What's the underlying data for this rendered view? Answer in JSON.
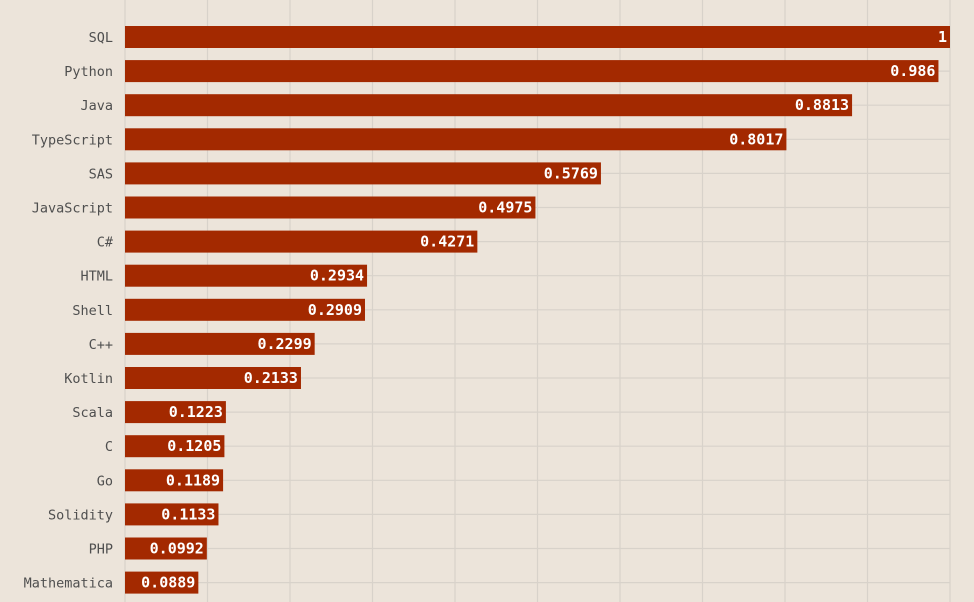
{
  "chart_data": {
    "type": "bar",
    "orientation": "horizontal",
    "categories": [
      "SQL",
      "Python",
      "Java",
      "TypeScript",
      "SAS",
      "JavaScript",
      "C#",
      "HTML",
      "Shell",
      "C++",
      "Kotlin",
      "Scala",
      "C",
      "Go",
      "Solidity",
      "PHP",
      "Mathematica"
    ],
    "values": [
      1,
      0.986,
      0.8813,
      0.8017,
      0.5769,
      0.4975,
      0.4271,
      0.2934,
      0.2909,
      0.2299,
      0.2133,
      0.1223,
      0.1205,
      0.1189,
      0.1133,
      0.0992,
      0.0889
    ],
    "value_labels": [
      "1",
      "0.986",
      "0.8813",
      "0.8017",
      "0.5769",
      "0.4975",
      "0.4271",
      "0.2934",
      "0.2909",
      "0.2299",
      "0.2133",
      "0.1223",
      "0.1205",
      "0.1189",
      "0.1133",
      "0.0992",
      "0.0889"
    ],
    "xlim": [
      0,
      1
    ],
    "x_gridlines": [
      0,
      0.1,
      0.2,
      0.3,
      0.4,
      0.5,
      0.6,
      0.7,
      0.8,
      0.9,
      1
    ],
    "grid": true,
    "legend": "none",
    "colors": {
      "bar": "#a32900",
      "background": "#ece4da",
      "grid": "#d8d2ca",
      "value_text": "#ffffff",
      "category_text": "#4f4f4f"
    }
  }
}
